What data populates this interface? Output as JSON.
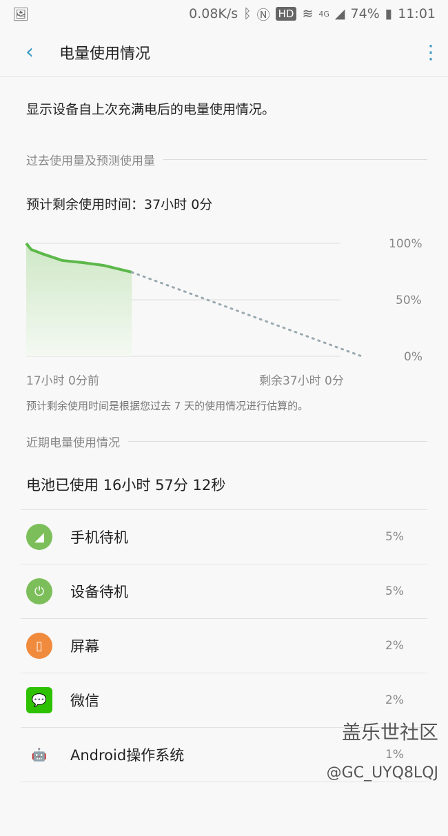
{
  "status_bar": {
    "speed": "0.08K/s",
    "hd": "HD",
    "network": "4G",
    "battery": "74%",
    "time": "11:01"
  },
  "app_bar": {
    "title": "电量使用情况"
  },
  "description": "显示设备自上次充满电后的电量使用情况。",
  "history_section": {
    "title": "过去使用量及预测使用量",
    "estimate": "预计剩余使用时间：37小时 0分",
    "note": "预计剩余使用时间是根据您过去 7 天的使用情况进行估算的。"
  },
  "chart_data": {
    "type": "line",
    "ylim": [
      0,
      100
    ],
    "y_ticks": [
      "100%",
      "50%",
      "0%"
    ],
    "x_labels": [
      "17小时 0分前",
      "剩余37小时 0分"
    ],
    "series": [
      {
        "style": "solid",
        "color": "#5cb84a",
        "x": [
          -17,
          -16.2,
          -14.5,
          -11.2,
          -7.9,
          -4.6,
          0
        ],
        "y": [
          100,
          94.5,
          90.9,
          84.8,
          82.9,
          80.5,
          74.4
        ]
      },
      {
        "style": "dotted",
        "color": "#9aa9b0",
        "x": [
          0,
          37
        ],
        "y": [
          74.4,
          0
        ]
      }
    ],
    "grid": true
  },
  "recent_section": {
    "title": "近期电量使用情况",
    "used": "电池已使用 16小时 57分 12秒"
  },
  "items": [
    {
      "name": "手机待机",
      "percent": "5%",
      "icon": "signal-icon",
      "color": "#7cbf5a"
    },
    {
      "name": "设备待机",
      "percent": "5%",
      "icon": "power-icon",
      "color": "#7cbf5a"
    },
    {
      "name": "屏幕",
      "percent": "2%",
      "icon": "screen-icon",
      "color": "#f08a3c"
    },
    {
      "name": "微信",
      "percent": "2%",
      "icon": "wechat-icon",
      "color": "#2dc100"
    },
    {
      "name": "Android操作系统",
      "percent": "1%",
      "icon": "android-icon",
      "color": "#5ab4e0"
    }
  ],
  "watermark": {
    "line1": "盖乐世社区",
    "line2": "@GC_UYQ8LQJ"
  }
}
